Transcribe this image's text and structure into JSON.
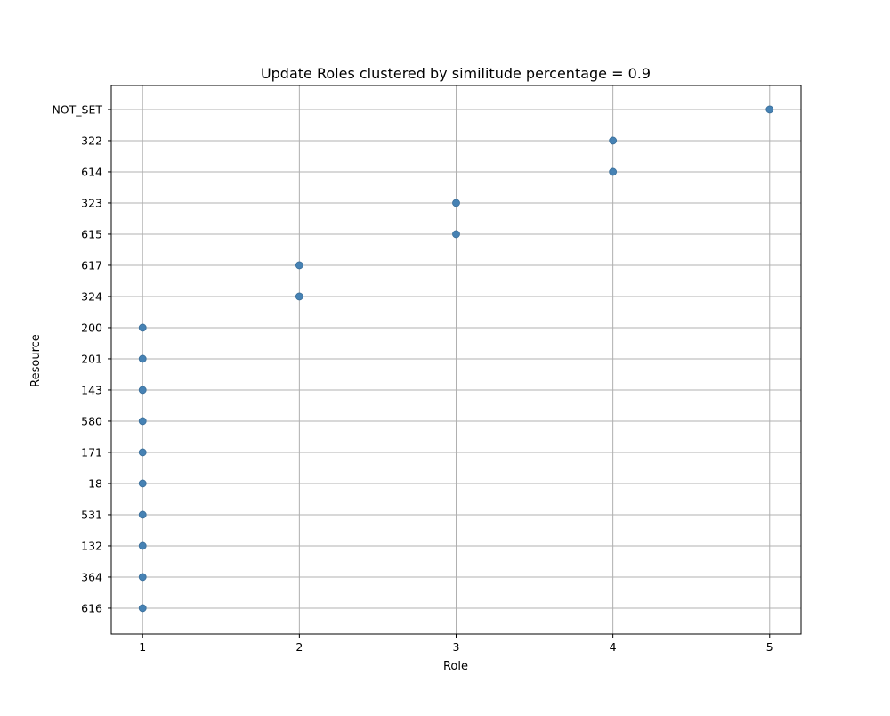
{
  "chart_data": {
    "type": "scatter",
    "title": "Update Roles clustered by similitude percentage = 0.9",
    "xlabel": "Role",
    "ylabel": "Resource",
    "x_ticks": [
      1,
      2,
      3,
      4,
      5
    ],
    "xlim": [
      0.8,
      5.2
    ],
    "y_categories": [
      "616",
      "364",
      "132",
      "531",
      "18",
      "171",
      "580",
      "143",
      "201",
      "200",
      "324",
      "617",
      "615",
      "323",
      "614",
      "322",
      "NOT_SET"
    ],
    "points": [
      {
        "x": 1,
        "y": "616"
      },
      {
        "x": 1,
        "y": "364"
      },
      {
        "x": 1,
        "y": "132"
      },
      {
        "x": 1,
        "y": "531"
      },
      {
        "x": 1,
        "y": "18"
      },
      {
        "x": 1,
        "y": "171"
      },
      {
        "x": 1,
        "y": "580"
      },
      {
        "x": 1,
        "y": "143"
      },
      {
        "x": 1,
        "y": "201"
      },
      {
        "x": 1,
        "y": "200"
      },
      {
        "x": 2,
        "y": "324"
      },
      {
        "x": 2,
        "y": "617"
      },
      {
        "x": 3,
        "y": "615"
      },
      {
        "x": 3,
        "y": "323"
      },
      {
        "x": 4,
        "y": "614"
      },
      {
        "x": 4,
        "y": "322"
      },
      {
        "x": 5,
        "y": "NOT_SET"
      }
    ],
    "grid": true,
    "point_color": "#4682b4",
    "point_edge_color": "#3a6e99",
    "grid_color": "#b0b0b0"
  }
}
